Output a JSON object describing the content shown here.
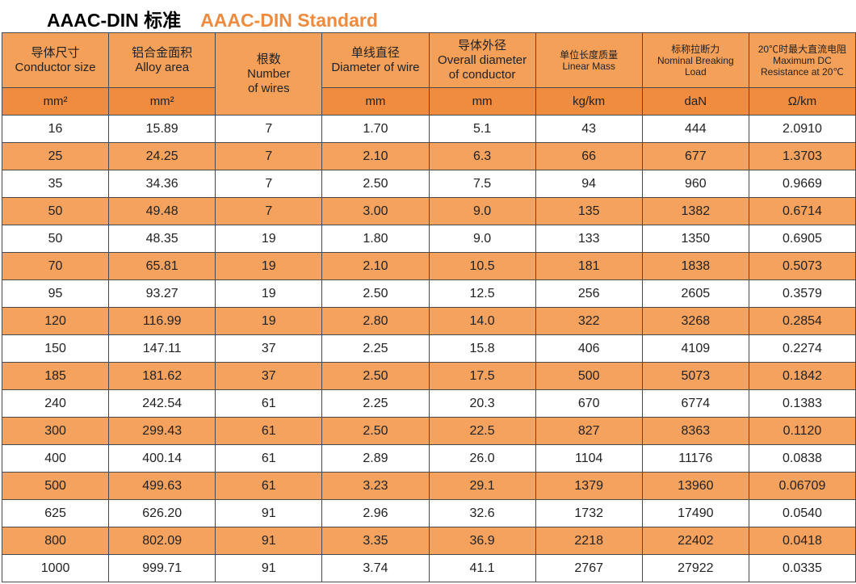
{
  "header": {
    "title_zh": "AAAC-DIN 标准",
    "title_en": "AAAC-DIN Standard"
  },
  "table": {
    "columns": [
      {
        "zh": "导体尺寸",
        "en": [
          "Conductor size"
        ],
        "unit": "mm²"
      },
      {
        "zh": "铝合金面积",
        "en": [
          "Alloy area"
        ],
        "unit": "mm²"
      },
      {
        "zh": "根数",
        "en": [
          "Number",
          "of wires"
        ]
      },
      {
        "zh": "单线直径",
        "en": [
          "Diameter of wire"
        ],
        "unit": "mm"
      },
      {
        "zh": "导体外径",
        "en": [
          "Overall diameter",
          "of conductor"
        ],
        "unit": "mm"
      },
      {
        "zh": "单位长度质量",
        "en": [
          "Linear Mass"
        ],
        "unit": "kg/km"
      },
      {
        "zh": "标称拉断力",
        "en": [
          "Nominal Breaking",
          "Load"
        ],
        "unit": "daN"
      },
      {
        "zh": "20℃时最大直流电阻",
        "en": [
          "Maximum DC",
          "Resistance at 20℃"
        ],
        "unit": "Ω/km"
      }
    ],
    "rows": [
      [
        "16",
        "15.89",
        "7",
        "1.70",
        "5.1",
        "43",
        "444",
        "2.0910"
      ],
      [
        "25",
        "24.25",
        "7",
        "2.10",
        "6.3",
        "66",
        "677",
        "1.3703"
      ],
      [
        "35",
        "34.36",
        "7",
        "2.50",
        "7.5",
        "94",
        "960",
        "0.9669"
      ],
      [
        "50",
        "49.48",
        "7",
        "3.00",
        "9.0",
        "135",
        "1382",
        "0.6714"
      ],
      [
        "50",
        "48.35",
        "19",
        "1.80",
        "9.0",
        "133",
        "1350",
        "0.6905"
      ],
      [
        "70",
        "65.81",
        "19",
        "2.10",
        "10.5",
        "181",
        "1838",
        "0.5073"
      ],
      [
        "95",
        "93.27",
        "19",
        "2.50",
        "12.5",
        "256",
        "2605",
        "0.3579"
      ],
      [
        "120",
        "116.99",
        "19",
        "2.80",
        "14.0",
        "322",
        "3268",
        "0.2854"
      ],
      [
        "150",
        "147.11",
        "37",
        "2.25",
        "15.8",
        "406",
        "4109",
        "0.2274"
      ],
      [
        "185",
        "181.62",
        "37",
        "2.50",
        "17.5",
        "500",
        "5073",
        "0.1842"
      ],
      [
        "240",
        "242.54",
        "61",
        "2.25",
        "20.3",
        "670",
        "6774",
        "0.1383"
      ],
      [
        "300",
        "299.43",
        "61",
        "2.50",
        "22.5",
        "827",
        "8363",
        "0.1120"
      ],
      [
        "400",
        "400.14",
        "61",
        "2.89",
        "26.0",
        "1104",
        "11176",
        "0.0838"
      ],
      [
        "500",
        "499.63",
        "61",
        "3.23",
        "29.1",
        "1379",
        "13960",
        "0.06709"
      ],
      [
        "625",
        "626.20",
        "91",
        "2.96",
        "32.6",
        "1732",
        "17490",
        "0.0540"
      ],
      [
        "800",
        "802.09",
        "91",
        "3.35",
        "36.9",
        "2218",
        "22402",
        "0.0418"
      ],
      [
        "1000",
        "999.71",
        "91",
        "3.74",
        "41.1",
        "2767",
        "27922",
        "0.0335"
      ]
    ]
  }
}
